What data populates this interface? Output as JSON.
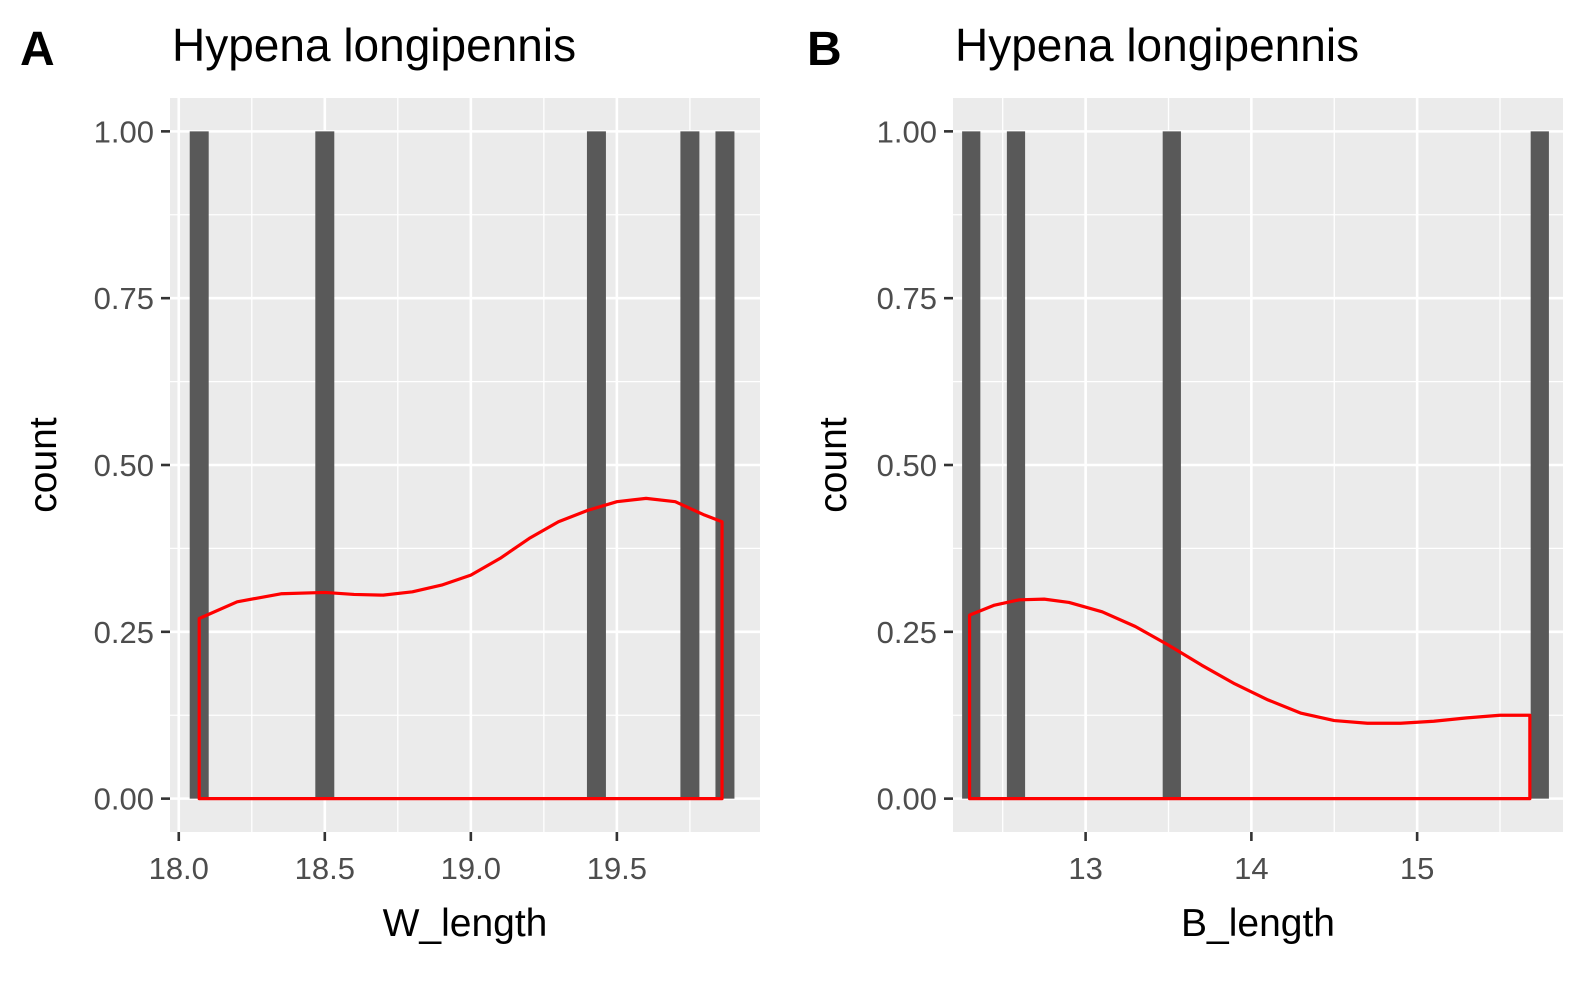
{
  "chart_data": [
    {
      "panel_label": "A",
      "type": "bar",
      "title": "Hypena longipennis",
      "xlabel": "W_length",
      "ylabel": "count",
      "xlim": [
        17.97,
        19.99
      ],
      "ylim": [
        -0.05,
        1.05
      ],
      "x_ticks": [
        18.0,
        18.5,
        19.0,
        19.5
      ],
      "x_tick_labels": [
        "18.0",
        "18.5",
        "19.0",
        "19.5"
      ],
      "y_ticks": [
        0,
        0.25,
        0.5,
        0.75,
        1.0
      ],
      "y_tick_labels": [
        "0.00",
        "0.25",
        "0.50",
        "0.75",
        "1.00"
      ],
      "grid": true,
      "bar_width": 0.065,
      "bars": [
        {
          "x": 18.07,
          "count": 1
        },
        {
          "x": 18.5,
          "count": 1
        },
        {
          "x": 19.43,
          "count": 1
        },
        {
          "x": 19.75,
          "count": 1
        },
        {
          "x": 19.87,
          "count": 1
        }
      ],
      "density_color": "#ff0000",
      "bar_color": "#595959",
      "density": {
        "x": [
          18.07,
          18.2,
          18.35,
          18.5,
          18.6,
          18.7,
          18.8,
          18.9,
          19.0,
          19.1,
          19.2,
          19.3,
          19.4,
          19.5,
          19.6,
          19.7,
          19.8,
          19.86
        ],
        "y": [
          0.27,
          0.295,
          0.307,
          0.309,
          0.306,
          0.305,
          0.31,
          0.32,
          0.335,
          0.36,
          0.39,
          0.415,
          0.432,
          0.445,
          0.45,
          0.445,
          0.425,
          0.415
        ]
      }
    },
    {
      "panel_label": "B",
      "type": "bar",
      "title": "Hypena longipennis",
      "xlabel": "B_length",
      "ylabel": "count",
      "xlim": [
        12.2,
        15.88
      ],
      "ylim": [
        -0.05,
        1.05
      ],
      "x_ticks": [
        13,
        14,
        15
      ],
      "x_tick_labels": [
        "13",
        "14",
        "15"
      ],
      "y_ticks": [
        0,
        0.25,
        0.5,
        0.75,
        1.0
      ],
      "y_tick_labels": [
        "0.00",
        "0.25",
        "0.50",
        "0.75",
        "1.00"
      ],
      "grid": true,
      "bar_width": 0.11,
      "bars": [
        {
          "x": 12.31,
          "count": 1
        },
        {
          "x": 12.58,
          "count": 1
        },
        {
          "x": 13.52,
          "count": 1
        },
        {
          "x": 15.74,
          "count": 1
        }
      ],
      "density_color": "#ff0000",
      "bar_color": "#595959",
      "density": {
        "x": [
          12.3,
          12.45,
          12.6,
          12.75,
          12.9,
          13.1,
          13.3,
          13.5,
          13.7,
          13.9,
          14.1,
          14.3,
          14.5,
          14.7,
          14.9,
          15.1,
          15.3,
          15.5,
          15.68
        ],
        "y": [
          0.275,
          0.29,
          0.298,
          0.299,
          0.294,
          0.28,
          0.258,
          0.23,
          0.2,
          0.172,
          0.148,
          0.128,
          0.117,
          0.113,
          0.113,
          0.116,
          0.121,
          0.125,
          0.125
        ]
      }
    }
  ]
}
